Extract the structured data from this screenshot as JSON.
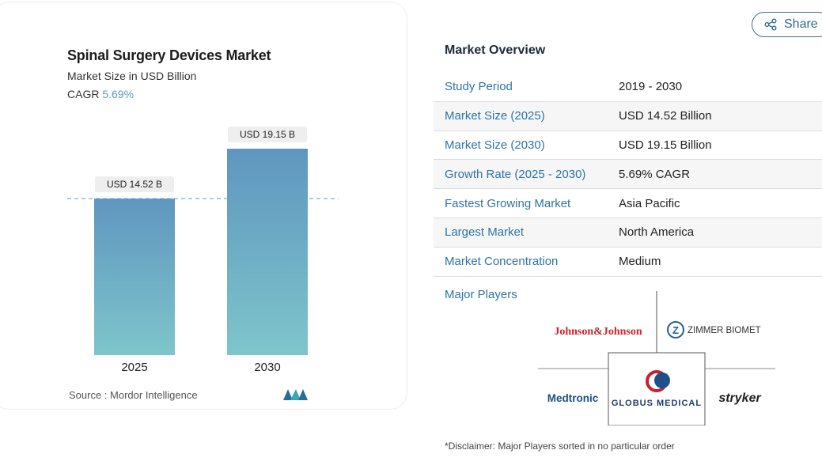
{
  "share": {
    "label": "Share",
    "icon": "share-icon"
  },
  "chart": {
    "title": "Spinal Surgery Devices Market",
    "subtitle": "Market Size in USD Billion",
    "cagr_label": "CAGR",
    "cagr_value": "5.69%",
    "source": "Source :  Mordor Intelligence"
  },
  "chart_data": {
    "type": "bar",
    "categories": [
      "2025",
      "2030"
    ],
    "values": [
      14.52,
      19.15
    ],
    "data_labels": [
      "USD 14.52 B",
      "USD 19.15 B"
    ],
    "title": "Spinal Surgery Devices Market",
    "subtitle": "Market Size in USD Billion",
    "xlabel": "",
    "ylabel": "",
    "grid": false,
    "reference_line": 14.52,
    "colors": {
      "bar_top": "#5f96bf",
      "bar_bottom": "#7ec5cb",
      "reference_line": "#5a9ac2"
    }
  },
  "overview": {
    "title": "Market Overview",
    "rows": [
      {
        "key": "Study Period",
        "value": "2019 - 2030"
      },
      {
        "key": "Market Size (2025)",
        "value": "USD 14.52 Billion"
      },
      {
        "key": "Market Size (2030)",
        "value": "USD 19.15 Billion"
      },
      {
        "key": "Growth Rate (2025 - 2030)",
        "value": "5.69% CAGR"
      },
      {
        "key": "Fastest Growing Market",
        "value": "Asia Pacific"
      },
      {
        "key": "Largest Market",
        "value": "North America"
      },
      {
        "key": "Market Concentration",
        "value": "Medium"
      }
    ]
  },
  "players": {
    "label": "Major Players",
    "logos": [
      "Johnson&Johnson",
      "ZIMMER BIOMET",
      "Medtronic",
      "GLOBUS MEDICAL",
      "stryker"
    ]
  },
  "disclaimer": "*Disclaimer: Major Players sorted in no particular order",
  "colors": {
    "accent": "#2f73a7",
    "cagr": "#5b9bbd"
  }
}
